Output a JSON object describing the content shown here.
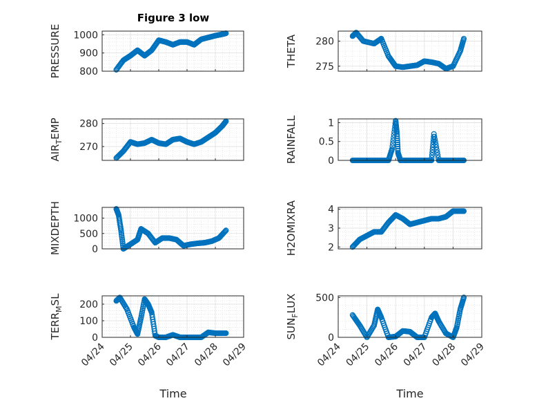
{
  "figure": {
    "title": "Figure 3 low",
    "xlabel": "Time",
    "marker_color": "#0072BD"
  },
  "chart_data": [
    {
      "type": "scatter",
      "ylabel": "PRESSURE",
      "ylim": [
        800,
        1020
      ],
      "yticks": [
        800,
        900,
        1000
      ],
      "xlim": [
        "2024-04-24",
        "2024-04-29"
      ],
      "grid": true,
      "x": [
        "04/24 12:00",
        "04/24 18:00",
        "04/25 00:00",
        "04/25 06:00",
        "04/25 12:00",
        "04/25 18:00",
        "04/26 00:00",
        "04/26 06:00",
        "04/26 12:00",
        "04/26 18:00",
        "04/27 00:00",
        "04/27 06:00",
        "04/27 12:00",
        "04/27 18:00",
        "04/28 00:00",
        "04/28 06:00",
        "04/28 09:00"
      ],
      "y": [
        808,
        860,
        885,
        915,
        885,
        915,
        970,
        960,
        945,
        960,
        960,
        945,
        975,
        985,
        995,
        1003,
        1008
      ]
    },
    {
      "type": "scatter",
      "ylabel": "THETA",
      "ylim": [
        274,
        282
      ],
      "yticks": [
        275,
        280
      ],
      "xlim": [
        "2024-04-24",
        "2024-04-29"
      ],
      "grid": true,
      "x": [
        "04/24 12:00",
        "04/24 15:00",
        "04/24 21:00",
        "04/25 06:00",
        "04/25 12:00",
        "04/25 18:00",
        "04/26 00:00",
        "04/26 06:00",
        "04/26 12:00",
        "04/26 18:00",
        "04/27 00:00",
        "04/27 06:00",
        "04/27 12:00",
        "04/27 18:00",
        "04/28 00:00",
        "04/28 06:00",
        "04/28 09:00"
      ],
      "y": [
        281,
        281.7,
        280,
        279.5,
        280.5,
        277,
        275,
        274.8,
        275,
        275.2,
        276,
        275.8,
        275.5,
        274.5,
        275,
        278,
        280.5
      ]
    },
    {
      "type": "scatter",
      "ylabel": "AIR_TEMP",
      "ylim": [
        264,
        282
      ],
      "yticks": [
        270,
        280
      ],
      "xlim": [
        "2024-04-24",
        "2024-04-29"
      ],
      "grid": true,
      "x": [
        "04/24 12:00",
        "04/24 18:00",
        "04/25 00:00",
        "04/25 06:00",
        "04/25 12:00",
        "04/25 18:00",
        "04/26 00:00",
        "04/26 06:00",
        "04/26 12:00",
        "04/26 18:00",
        "04/27 00:00",
        "04/27 06:00",
        "04/27 12:00",
        "04/27 18:00",
        "04/28 00:00",
        "04/28 06:00",
        "04/28 09:00"
      ],
      "y": [
        265,
        268,
        272,
        271,
        271.5,
        273,
        271.5,
        271,
        273,
        273.5,
        272,
        271,
        272,
        274,
        276,
        279,
        281
      ]
    },
    {
      "type": "scatter",
      "ylabel": "RAINFALL",
      "ylim": [
        0,
        1.1
      ],
      "yticks": [
        0,
        0.5,
        1
      ],
      "xlim": [
        "2024-04-24",
        "2024-04-29"
      ],
      "grid": true,
      "x": [
        "04/24 12:00",
        "04/24 18:00",
        "04/25 00:00",
        "04/25 06:00",
        "04/25 12:00",
        "04/25 18:00",
        "04/25 21:00",
        "04/26 00:00",
        "04/26 01:00",
        "04/26 02:00",
        "04/26 04:00",
        "04/26 06:00",
        "04/26 12:00",
        "04/26 18:00",
        "04/27 00:00",
        "04/27 06:00",
        "04/27 08:00",
        "04/27 12:00",
        "04/27 18:00",
        "04/28 00:00",
        "04/28 06:00",
        "04/28 09:00"
      ],
      "y": [
        0,
        0,
        0,
        0,
        0,
        0,
        0.3,
        1.05,
        0.75,
        0.2,
        0,
        0,
        0,
        0,
        0,
        0,
        0.7,
        0,
        0,
        0,
        0,
        0
      ]
    },
    {
      "type": "scatter",
      "ylabel": "MIXDEPTH",
      "ylim": [
        0,
        1350
      ],
      "yticks": [
        0,
        500,
        1000
      ],
      "xlim": [
        "2024-04-24",
        "2024-04-29"
      ],
      "grid": true,
      "x": [
        "04/24 12:00",
        "04/24 14:00",
        "04/24 16:00",
        "04/24 18:00",
        "04/25 00:00",
        "04/25 06:00",
        "04/25 09:00",
        "04/25 15:00",
        "04/25 21:00",
        "04/26 03:00",
        "04/26 09:00",
        "04/26 15:00",
        "04/26 21:00",
        "04/27 03:00",
        "04/27 09:00",
        "04/27 15:00",
        "04/27 21:00",
        "04/28 03:00",
        "04/28 09:00"
      ],
      "y": [
        1300,
        1100,
        600,
        0,
        150,
        300,
        650,
        500,
        200,
        350,
        350,
        300,
        100,
        150,
        180,
        200,
        250,
        350,
        600
      ]
    },
    {
      "type": "scatter",
      "ylabel": "H2OMIXRA",
      "ylim": [
        1.9,
        4.1
      ],
      "yticks": [
        2,
        3,
        4
      ],
      "xlim": [
        "2024-04-24",
        "2024-04-29"
      ],
      "grid": true,
      "x": [
        "04/24 12:00",
        "04/24 18:00",
        "04/25 00:00",
        "04/25 06:00",
        "04/25 12:00",
        "04/25 18:00",
        "04/26 00:00",
        "04/26 06:00",
        "04/26 12:00",
        "04/26 18:00",
        "04/27 00:00",
        "04/27 06:00",
        "04/27 12:00",
        "04/27 18:00",
        "04/28 00:00",
        "04/28 06:00",
        "04/28 09:00"
      ],
      "y": [
        2,
        2.4,
        2.6,
        2.8,
        2.8,
        3.3,
        3.7,
        3.5,
        3.2,
        3.3,
        3.4,
        3.5,
        3.5,
        3.6,
        3.9,
        3.9,
        3.9
      ]
    },
    {
      "type": "scatter",
      "ylabel": "TERR_MSL",
      "ylim": [
        0,
        250
      ],
      "yticks": [
        0,
        100,
        200
      ],
      "xlim": [
        "2024-04-24",
        "2024-04-29"
      ],
      "grid": true,
      "x": [
        "04/24 12:00",
        "04/24 15:00",
        "04/24 21:00",
        "04/25 03:00",
        "04/25 06:00",
        "04/25 09:00",
        "04/25 12:00",
        "04/25 15:00",
        "04/25 18:00",
        "04/25 21:00",
        "04/26 00:00",
        "04/26 06:00",
        "04/26 12:00",
        "04/26 18:00",
        "04/27 00:00",
        "04/27 06:00",
        "04/27 12:00",
        "04/27 18:00",
        "04/28 00:00",
        "04/28 06:00",
        "04/28 09:00"
      ],
      "y": [
        220,
        240,
        170,
        60,
        20,
        120,
        230,
        200,
        150,
        10,
        0,
        0,
        15,
        0,
        0,
        0,
        0,
        30,
        25,
        25,
        25
      ]
    },
    {
      "type": "scatter",
      "ylabel": "SUN_FLUX",
      "ylim": [
        0,
        520
      ],
      "yticks": [
        0,
        500
      ],
      "xlim": [
        "2024-04-24",
        "2024-04-29"
      ],
      "grid": true,
      "x": [
        "04/24 12:00",
        "04/24 18:00",
        "04/25 00:00",
        "04/25 06:00",
        "04/25 09:00",
        "04/25 12:00",
        "04/25 18:00",
        "04/26 00:00",
        "04/26 06:00",
        "04/26 12:00",
        "04/26 18:00",
        "04/27 00:00",
        "04/27 06:00",
        "04/27 09:00",
        "04/27 12:00",
        "04/27 18:00",
        "04/28 00:00",
        "04/28 03:00",
        "04/28 06:00",
        "04/28 09:00"
      ],
      "y": [
        280,
        150,
        0,
        150,
        350,
        250,
        0,
        10,
        80,
        70,
        0,
        0,
        250,
        300,
        200,
        50,
        0,
        120,
        350,
        500
      ]
    }
  ],
  "x_tick_labels": [
    "04/24",
    "04/25",
    "04/26",
    "04/27",
    "04/28",
    "04/29"
  ],
  "subscript_labels": {
    "AIR_TEMP": [
      "AIR",
      "T",
      "EMP"
    ],
    "TERR_MSL": [
      "TERR",
      "M",
      "SL"
    ],
    "SUN_FLUX": [
      "SUN",
      "F",
      "LUX"
    ]
  }
}
